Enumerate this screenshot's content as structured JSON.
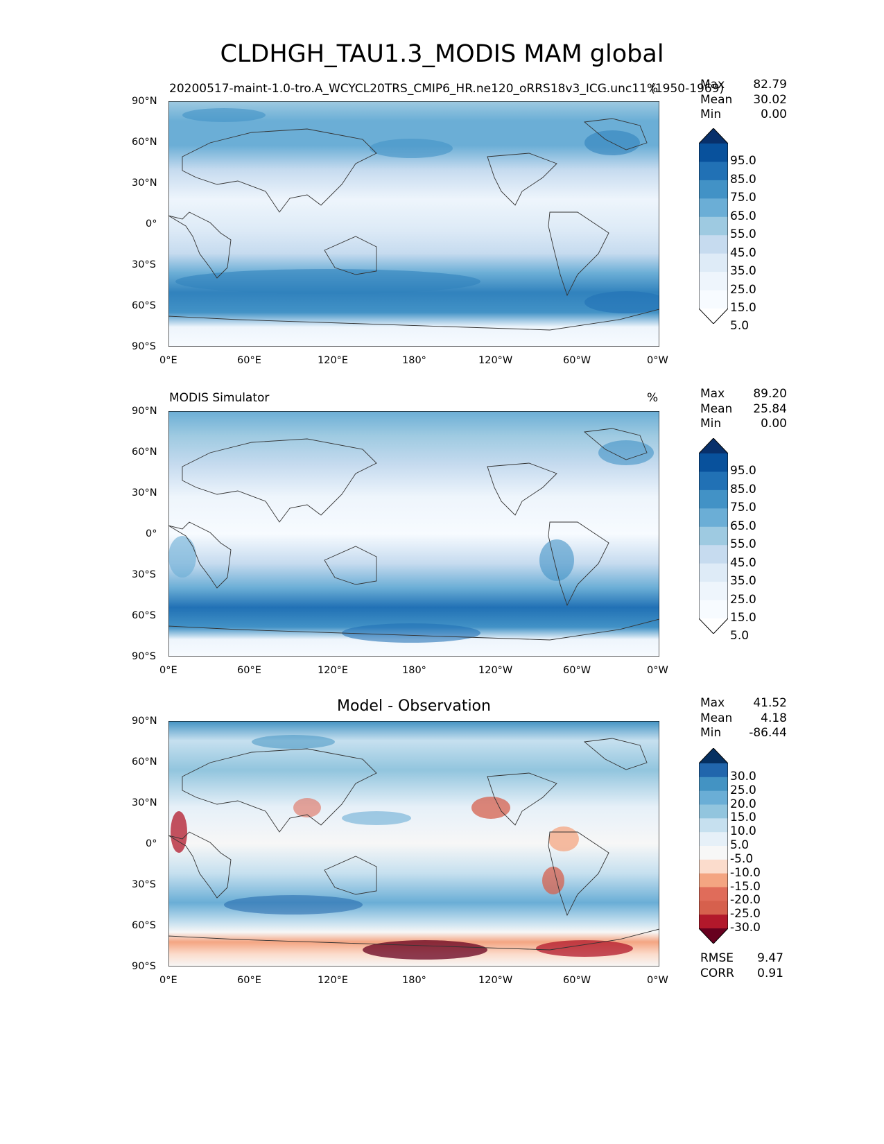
{
  "figure": {
    "title": "CLDHGH_TAU1.3_MODIS MAM global"
  },
  "panels": [
    {
      "id": "model",
      "subtitle": "20200517-maint-1.0-tro.A_WCYCL20TRS_CMIP6_HR.ne120_oRRS18v3_ICG.unc11 (1950-1969)",
      "units": "%",
      "center_title": "",
      "stats": {
        "max_label": "Max",
        "max": "82.79",
        "mean_label": "Mean",
        "mean": "30.02",
        "min_label": "Min",
        "min": "0.00"
      },
      "colorbar_ticks": [
        "95.0",
        "85.0",
        "75.0",
        "65.0",
        "55.0",
        "45.0",
        "35.0",
        "25.0",
        "15.0",
        "5.0"
      ],
      "colorbar_colors": [
        "#08306b",
        "#08519c",
        "#2171b5",
        "#4292c6",
        "#6baed6",
        "#9ecae1",
        "#c6dbef",
        "#deebf7",
        "#eef5fc",
        "#f7fbff",
        "#ffffff"
      ]
    },
    {
      "id": "observation",
      "subtitle": "MODIS Simulator",
      "units": "%",
      "center_title": "",
      "stats": {
        "max_label": "Max",
        "max": "89.20",
        "mean_label": "Mean",
        "mean": "25.84",
        "min_label": "Min",
        "min": "0.00"
      },
      "colorbar_ticks": [
        "95.0",
        "85.0",
        "75.0",
        "65.0",
        "55.0",
        "45.0",
        "35.0",
        "25.0",
        "15.0",
        "5.0"
      ],
      "colorbar_colors": [
        "#08306b",
        "#08519c",
        "#2171b5",
        "#4292c6",
        "#6baed6",
        "#9ecae1",
        "#c6dbef",
        "#deebf7",
        "#eef5fc",
        "#f7fbff",
        "#ffffff"
      ]
    },
    {
      "id": "difference",
      "subtitle": "",
      "units": "",
      "center_title": "Model - Observation",
      "stats": {
        "max_label": "Max",
        "max": "41.52",
        "mean_label": "Mean",
        "mean": "4.18",
        "min_label": "Min",
        "min": "-86.44"
      },
      "colorbar_ticks": [
        "30.0",
        "25.0",
        "20.0",
        "15.0",
        "10.0",
        "5.0",
        "-5.0",
        "-10.0",
        "-15.0",
        "-20.0",
        "-25.0",
        "-30.0"
      ],
      "colorbar_colors": [
        "#053061",
        "#2166ac",
        "#4393c3",
        "#6aaed6",
        "#92c5de",
        "#c6e0ef",
        "#e6f0f8",
        "#f7f7f7",
        "#fbdccc",
        "#f4a582",
        "#e06c5a",
        "#d6604d",
        "#b2182b",
        "#67001f"
      ],
      "error_stats": {
        "rmse_label": "RMSE",
        "rmse": "9.47",
        "corr_label": "CORR",
        "corr": "0.91"
      }
    }
  ],
  "axes": {
    "lat_ticks": [
      "90°N",
      "60°N",
      "30°N",
      "0°",
      "30°S",
      "60°S",
      "90°S"
    ],
    "lon_ticks": [
      "0°E",
      "60°E",
      "120°E",
      "180°",
      "120°W",
      "60°W",
      "0°W"
    ]
  }
}
